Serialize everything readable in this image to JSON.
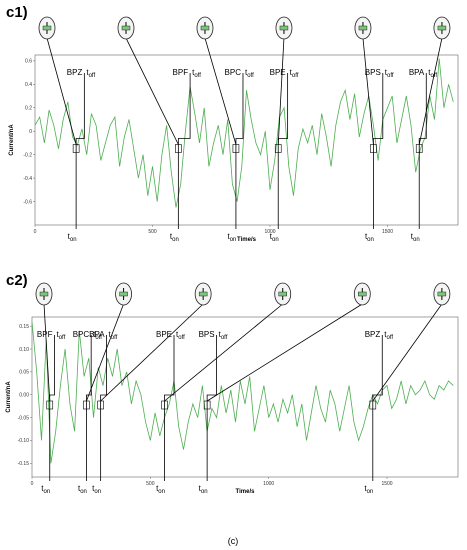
{
  "figure_caption": "(c)",
  "chart_data": [
    {
      "panel_label": "c1)",
      "type": "line",
      "xlabel": "Time/s",
      "ylabel": "Current/nA",
      "xlim": [
        0,
        1800
      ],
      "ylim": [
        -0.8,
        0.65
      ],
      "xticks": [
        "0",
        "500",
        "1000",
        "1500"
      ],
      "xtick_values": [
        0,
        500,
        1000,
        1500
      ],
      "yticks": [
        "0.6",
        "0.4",
        "0.2",
        "0",
        "-0.2",
        "-0.4",
        "-0.6"
      ],
      "ytick_values": [
        0.6,
        0.4,
        0.2,
        0,
        -0.2,
        -0.4,
        -0.6
      ],
      "line_color": "#4caf50",
      "x": [
        0,
        20,
        40,
        60,
        80,
        100,
        120,
        140,
        160,
        180,
        200,
        220,
        240,
        260,
        280,
        300,
        320,
        340,
        360,
        380,
        400,
        420,
        440,
        460,
        480,
        500,
        520,
        540,
        560,
        580,
        600,
        620,
        640,
        660,
        680,
        700,
        720,
        740,
        760,
        780,
        800,
        820,
        840,
        860,
        880,
        900,
        920,
        940,
        960,
        980,
        1000,
        1020,
        1040,
        1060,
        1080,
        1100,
        1120,
        1140,
        1160,
        1180,
        1200,
        1220,
        1240,
        1260,
        1280,
        1300,
        1320,
        1340,
        1360,
        1380,
        1400,
        1420,
        1440,
        1460,
        1480,
        1500,
        1520,
        1540,
        1560,
        1580,
        1600,
        1620,
        1640,
        1660,
        1680,
        1700,
        1720,
        1740,
        1760,
        1780
      ],
      "y": [
        0.05,
        0.12,
        -0.1,
        0.18,
        0.05,
        -0.15,
        0.1,
        0.25,
        -0.05,
        -0.12,
        0.02,
        -0.2,
        0.15,
        0.05,
        -0.25,
        -0.1,
        0.05,
        0.12,
        -0.3,
        -0.05,
        0.1,
        -0.15,
        -0.4,
        -0.2,
        -0.55,
        -0.3,
        -0.6,
        -0.2,
        0.05,
        -0.35,
        -0.65,
        -0.45,
        0.0,
        0.38,
        0.15,
        -0.1,
        0.2,
        -0.3,
        -0.1,
        0.05,
        -0.2,
        0.1,
        -0.45,
        -0.6,
        -0.3,
        0.35,
        0.1,
        -0.1,
        -0.2,
        0.0,
        -0.5,
        -0.25,
        0.12,
        0.2,
        -0.3,
        -0.55,
        -0.15,
        0.02,
        -0.1,
        0.05,
        -0.2,
        0.15,
        -0.05,
        -0.3,
        0.05,
        0.25,
        0.35,
        0.1,
        0.32,
        -0.05,
        0.15,
        0.3,
        0.05,
        -0.25,
        0.1,
        0.2,
        0.3,
        -0.1,
        0.1,
        0.3,
        0.05,
        -0.35,
        -0.15,
        -0.05,
        0.3,
        0.1,
        0.62,
        0.2,
        0.4,
        0.25
      ],
      "events": [
        {
          "label": "BPZ",
          "t_on": 175,
          "t_off": 210
        },
        {
          "label": "BPF",
          "t_on": 610,
          "t_off": 660
        },
        {
          "label": "BPC",
          "t_on": 855,
          "t_off": 885
        },
        {
          "label": "BPE",
          "t_on": 1035,
          "t_off": 1075
        },
        {
          "label": "BPS",
          "t_on": 1440,
          "t_off": 1480
        },
        {
          "label": "BPA",
          "t_on": 1635,
          "t_off": 1665
        }
      ]
    },
    {
      "panel_label": "c2)",
      "type": "line",
      "xlabel": "Time/s",
      "ylabel": "Current/nA",
      "xlim": [
        0,
        1800
      ],
      "ylim": [
        -0.18,
        0.17
      ],
      "xticks": [
        "0",
        "500",
        "1000",
        "1500"
      ],
      "xtick_values": [
        0,
        500,
        1000,
        1500
      ],
      "yticks": [
        "0.15",
        "0.10",
        "0.05",
        "0.00",
        "-0.05",
        "-0.10",
        "-0.15"
      ],
      "ytick_values": [
        0.15,
        0.1,
        0.05,
        0.0,
        -0.05,
        -0.1,
        -0.15
      ],
      "line_color": "#4caf50",
      "x": [
        0,
        20,
        40,
        60,
        80,
        100,
        120,
        140,
        160,
        180,
        200,
        220,
        240,
        260,
        280,
        300,
        320,
        340,
        360,
        380,
        400,
        420,
        440,
        460,
        480,
        500,
        520,
        540,
        560,
        580,
        600,
        620,
        640,
        660,
        680,
        700,
        720,
        740,
        760,
        780,
        800,
        820,
        840,
        860,
        880,
        900,
        920,
        940,
        960,
        980,
        1000,
        1020,
        1040,
        1060,
        1080,
        1100,
        1120,
        1140,
        1160,
        1180,
        1200,
        1220,
        1240,
        1260,
        1280,
        1300,
        1320,
        1340,
        1360,
        1380,
        1400,
        1420,
        1440,
        1460,
        1480,
        1500,
        1520,
        1540,
        1560,
        1580,
        1600,
        1620,
        1640,
        1660,
        1680,
        1700,
        1720,
        1740,
        1760,
        1780
      ],
      "y": [
        0.16,
        0.05,
        -0.1,
        0.12,
        -0.15,
        -0.08,
        0.02,
        0.1,
        -0.02,
        -0.08,
        0.14,
        0.04,
        0.08,
        -0.05,
        0.06,
        0.02,
        0.08,
        0.04,
        0.1,
        0.02,
        0.05,
        -0.02,
        0.03,
        0.0,
        -0.06,
        -0.1,
        -0.04,
        -0.09,
        -0.05,
        -0.02,
        0.03,
        -0.07,
        -0.12,
        -0.06,
        -0.02,
        -0.05,
        0.02,
        -0.08,
        -0.03,
        -0.05,
        0.02,
        -0.04,
        0.01,
        -0.06,
        0.03,
        -0.02,
        0.04,
        -0.08,
        -0.03,
        0.02,
        -0.05,
        -0.02,
        -0.06,
        -0.01,
        -0.04,
        0.0,
        -0.07,
        -0.02,
        -0.1,
        -0.04,
        0.02,
        -0.03,
        -0.06,
        0.01,
        -0.02,
        -0.08,
        -0.03,
        0.02,
        -0.06,
        -0.1,
        -0.07,
        -0.03,
        0.0,
        -0.02,
        0.01,
        0.02,
        -0.03,
        -0.01,
        0.03,
        -0.02,
        0.02,
        0.0,
        0.01,
        0.03,
        0.0,
        -0.01,
        0.02,
        0.01,
        0.03,
        0.02
      ],
      "events": [
        {
          "label": "BPF",
          "t_on": 75,
          "t_off": 95
        },
        {
          "label": "BPC",
          "t_on": 230,
          "t_off": 250
        },
        {
          "label": "BPA",
          "t_on": 290,
          "t_off": 315
        },
        {
          "label": "BPE",
          "t_on": 560,
          "t_off": 600
        },
        {
          "label": "BPS",
          "t_on": 740,
          "t_off": 780
        },
        {
          "label": "BPZ",
          "t_on": 1440,
          "t_off": 1480
        }
      ]
    }
  ]
}
